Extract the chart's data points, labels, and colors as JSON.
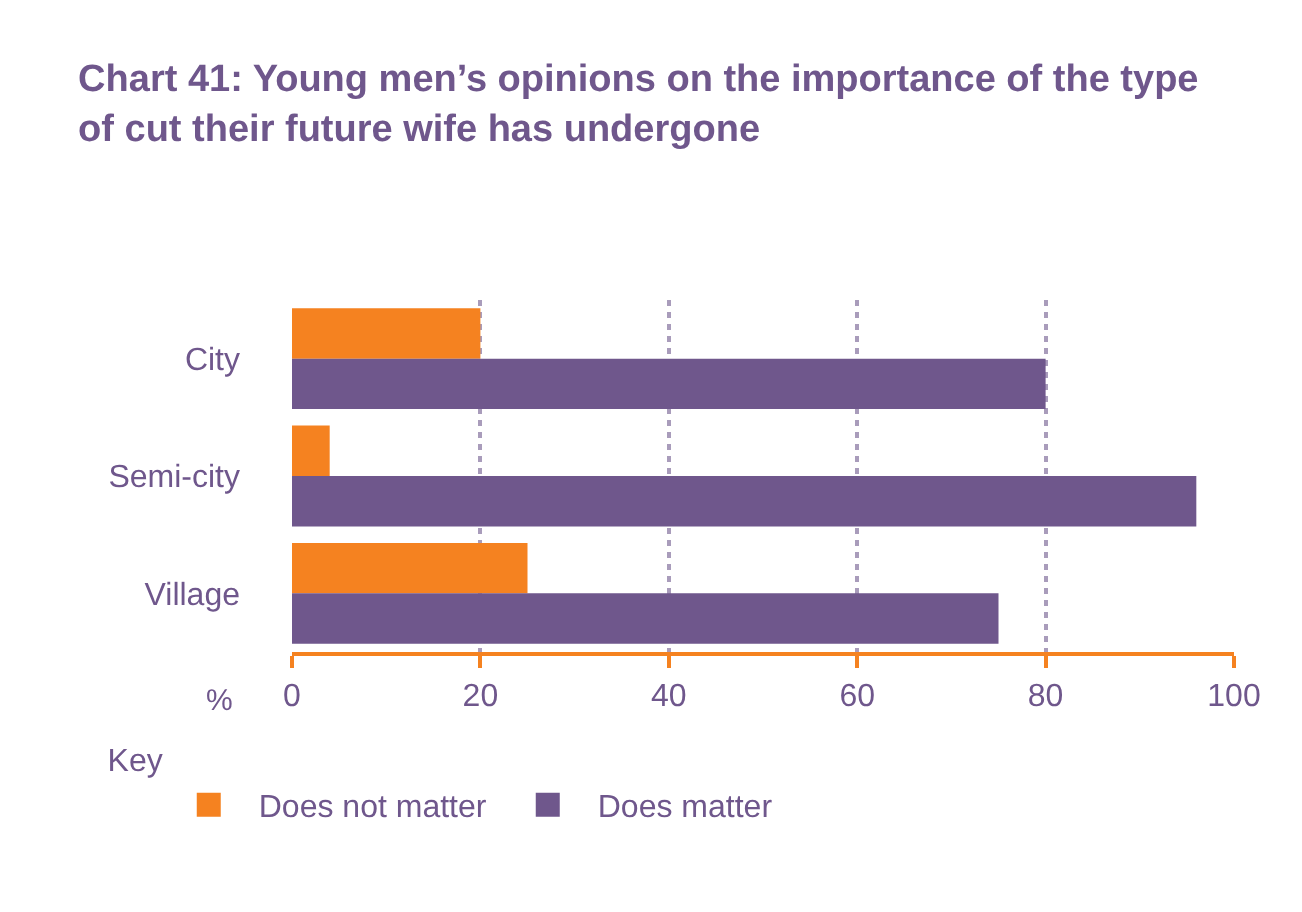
{
  "chart_data": {
    "type": "bar",
    "orientation": "horizontal",
    "title": "Chart 41: Young men’s opinions on the importance of the type of cut their future wife has undergone",
    "categories": [
      "City",
      "Semi-city",
      "Village"
    ],
    "series": [
      {
        "name": "Does not matter",
        "color": "#f58220",
        "values": [
          20,
          4,
          25
        ]
      },
      {
        "name": "Does matter",
        "color": "#6f578c",
        "values": [
          80,
          96,
          75
        ]
      }
    ],
    "xlabel": "%",
    "legend_title": "Key",
    "xlim": [
      0,
      100
    ],
    "xticks": [
      0,
      20,
      40,
      60,
      80,
      100
    ],
    "grid": "x",
    "legend": "bottom"
  }
}
